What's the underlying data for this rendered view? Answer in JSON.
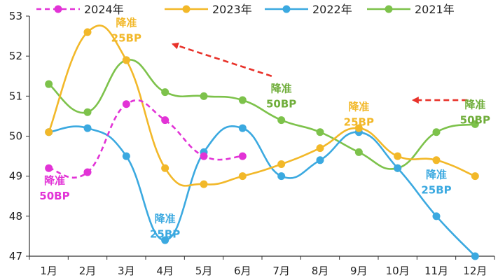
{
  "chart_data": {
    "type": "line",
    "categories": [
      "1月",
      "2月",
      "3月",
      "4月",
      "5月",
      "6月",
      "7月",
      "8月",
      "9月",
      "10月",
      "11月",
      "12月"
    ],
    "ylim": [
      47,
      53
    ],
    "yticks": [
      "47",
      "48",
      "49",
      "50",
      "51",
      "52",
      "53"
    ],
    "grid": false,
    "legend_position": "top",
    "series": [
      {
        "name": "2024年",
        "color": "#e233d6",
        "dashed": true,
        "values": [
          49.2,
          49.1,
          50.8,
          50.4,
          49.5,
          49.5,
          null,
          null,
          null,
          null,
          null,
          null
        ]
      },
      {
        "name": "2023年",
        "color": "#f2b829",
        "dashed": false,
        "values": [
          50.1,
          52.6,
          51.9,
          49.2,
          48.8,
          49.0,
          49.3,
          49.7,
          50.2,
          49.5,
          49.4,
          49.0
        ]
      },
      {
        "name": "2022年",
        "color": "#3ba9e0",
        "dashed": false,
        "values": [
          50.1,
          50.2,
          49.5,
          47.4,
          49.6,
          50.2,
          49.0,
          49.4,
          50.1,
          49.2,
          48.0,
          47.0
        ]
      },
      {
        "name": "2021年",
        "color": "#7dc24b",
        "dashed": false,
        "values": [
          51.3,
          50.6,
          51.9,
          51.1,
          51.0,
          50.9,
          50.4,
          50.1,
          49.6,
          49.2,
          50.1,
          50.3
        ]
      }
    ],
    "annotations": [
      {
        "lines": [
          "降准",
          "25BP"
        ],
        "color": "#f2b829",
        "month_index": 2.0,
        "y": 52.75
      },
      {
        "lines": [
          "降准",
          "50BP"
        ],
        "color": "#6fad3a",
        "month_index": 6.0,
        "y": 51.1
      },
      {
        "lines": [
          "降准",
          "25BP"
        ],
        "color": "#f2b829",
        "month_index": 8.0,
        "y": 50.65
      },
      {
        "lines": [
          "降准",
          "50BP"
        ],
        "color": "#6fad3a",
        "month_index": 11.0,
        "y": 50.7
      },
      {
        "lines": [
          "降准",
          "50BP"
        ],
        "color": "#e233d6",
        "month_index": 0.15,
        "y": 48.8
      },
      {
        "lines": [
          "降准",
          "25BP"
        ],
        "color": "#3ba9e0",
        "month_index": 3.0,
        "y": 47.85
      },
      {
        "lines": [
          "降准",
          "25BP"
        ],
        "color": "#3ba9e0",
        "month_index": 10.0,
        "y": 48.95
      }
    ],
    "arrows": [
      {
        "color": "#e8322a",
        "from": [
          5.75,
          51.5
        ],
        "to": [
          3.2,
          52.3
        ]
      },
      {
        "color": "#e8322a",
        "from": [
          10.8,
          50.9
        ],
        "to": [
          9.4,
          50.9
        ]
      }
    ]
  }
}
